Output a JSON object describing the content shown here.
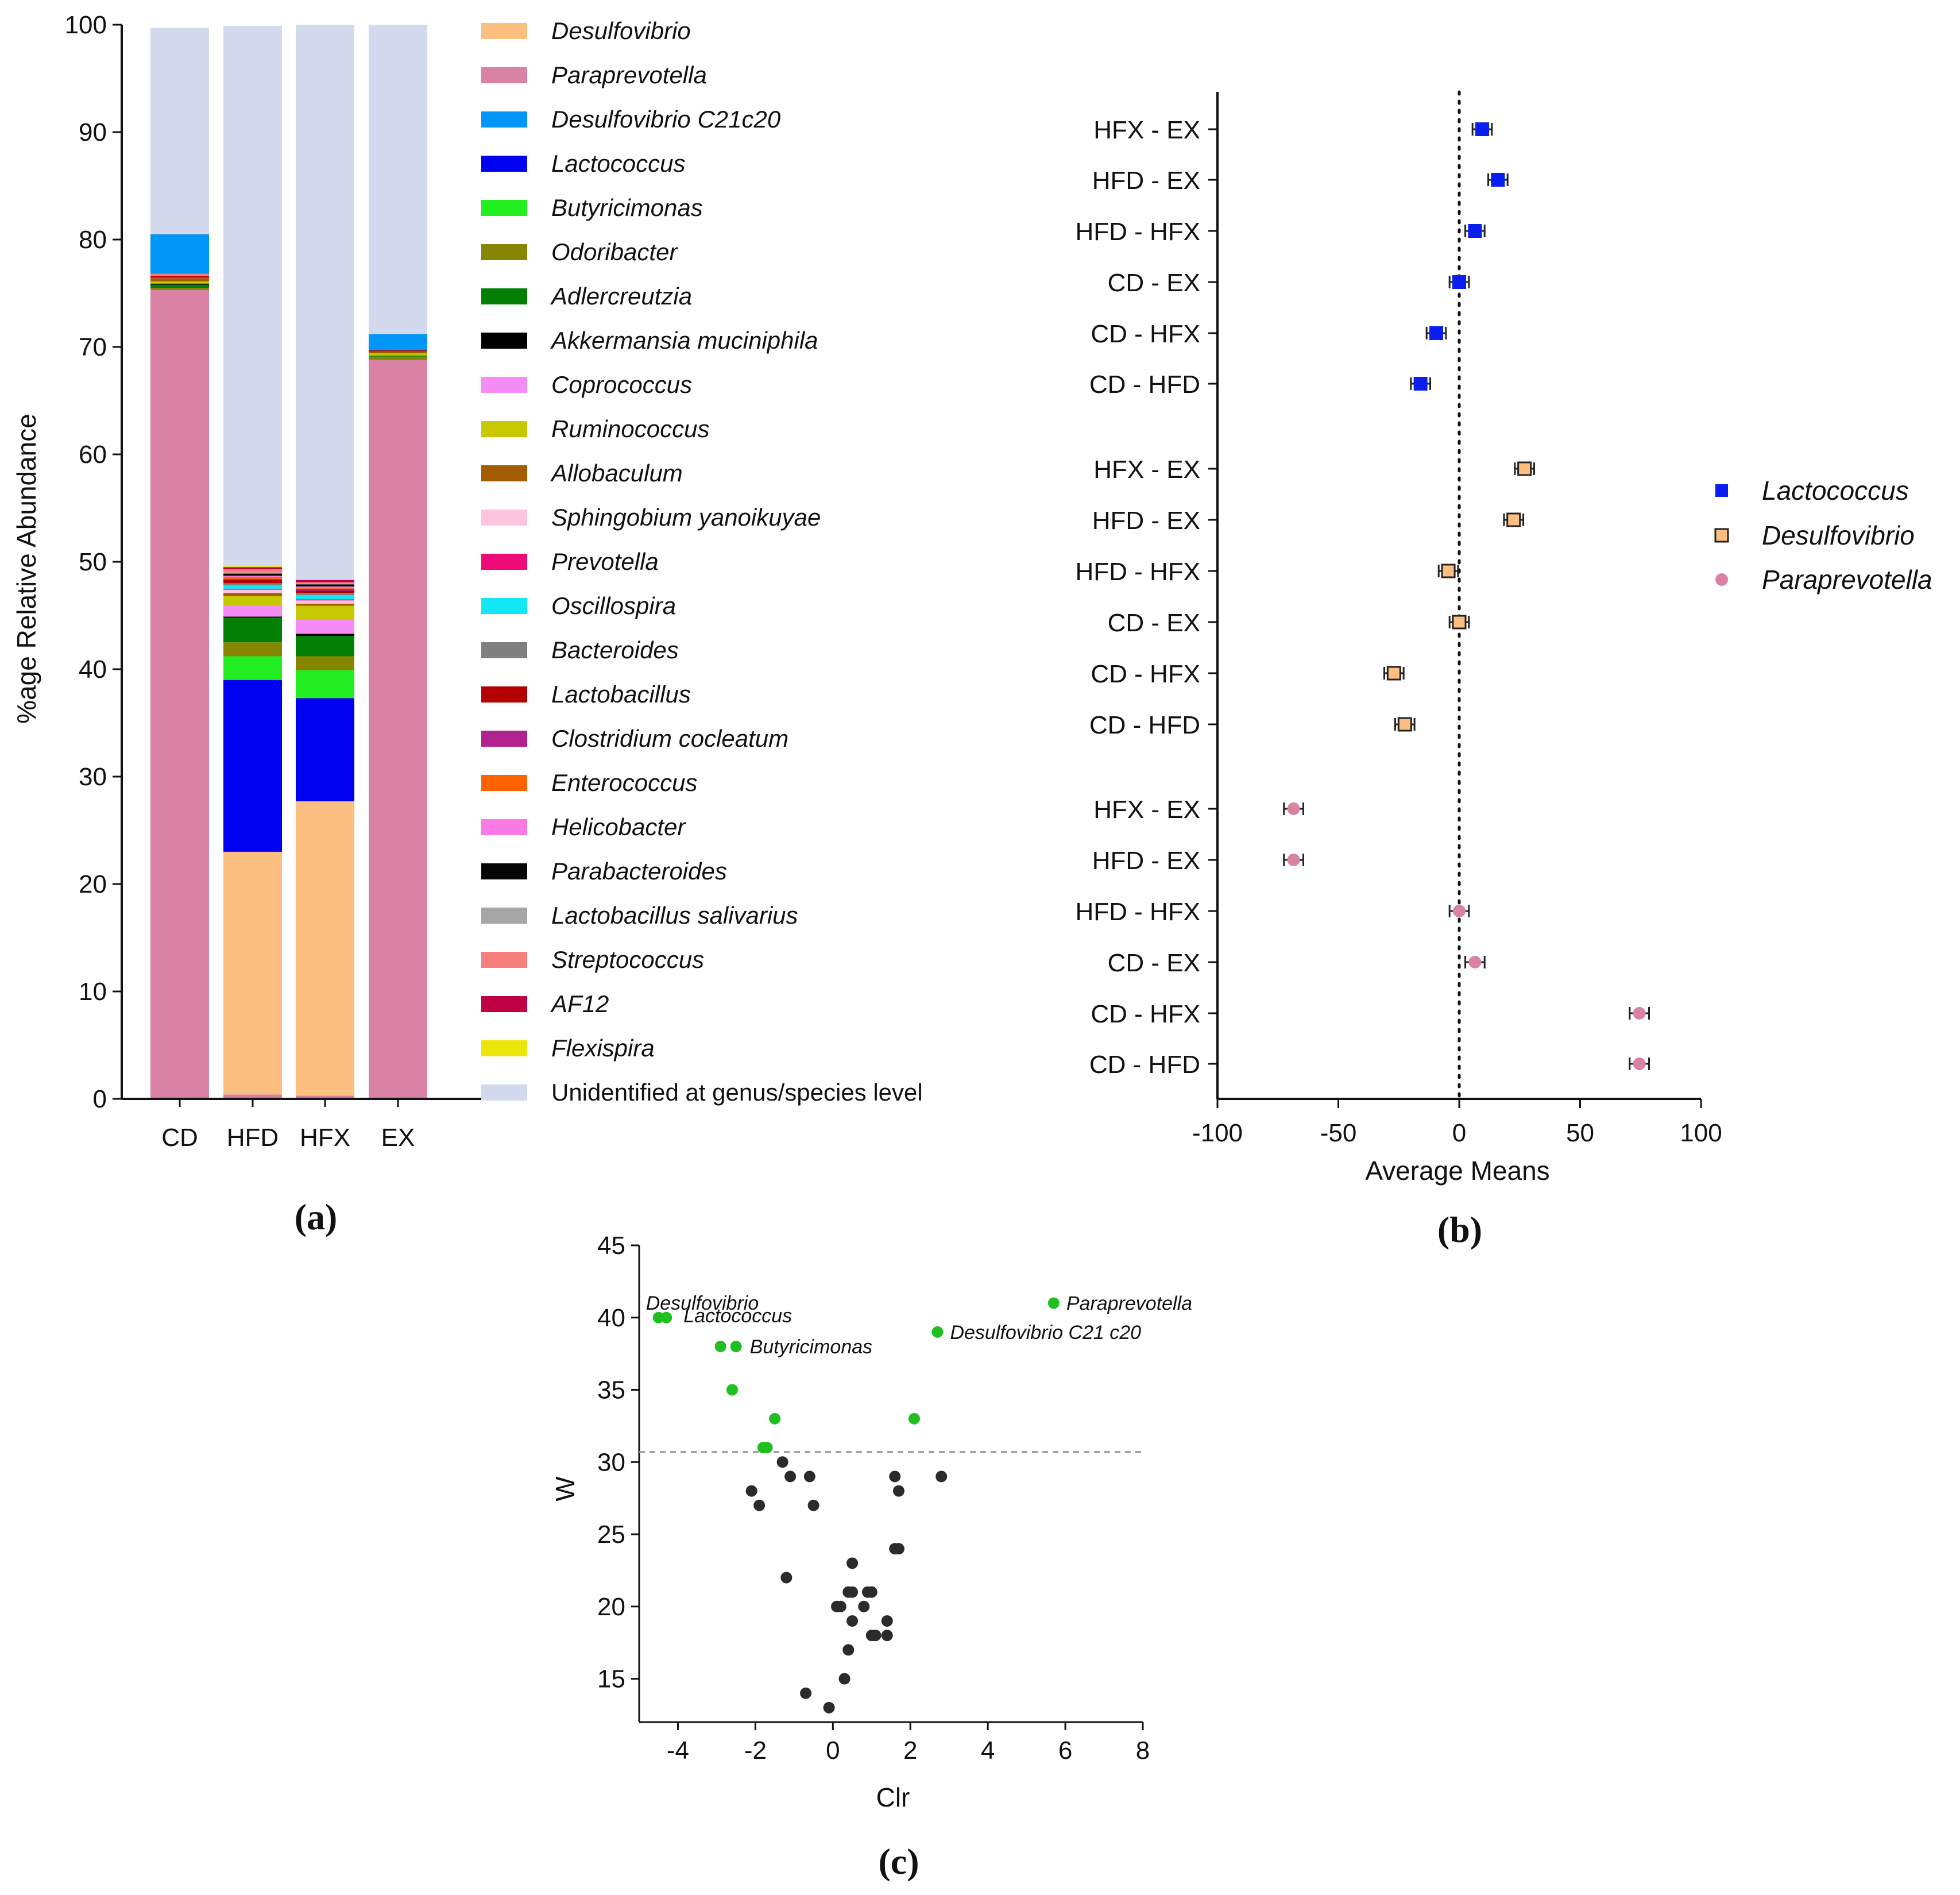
{
  "chart_data": [
    {
      "id": "a",
      "panel_label": "(a)",
      "type": "bar",
      "stacked": true,
      "ylabel": "%age Relative Abundance",
      "xlabel": "",
      "ylim": [
        0,
        100
      ],
      "yticks": [
        0,
        10,
        20,
        30,
        40,
        50,
        60,
        70,
        80,
        90,
        100
      ],
      "categories": [
        "CD",
        "HFD",
        "HFX",
        "EX"
      ],
      "series": [
        {
          "name": "Paraprevotella",
          "color": "#d982a4",
          "values": [
            75.3,
            0.4,
            0.3,
            68.8
          ]
        },
        {
          "name": "Desulfovibrio",
          "color": "#fdbf80",
          "values": [
            0.0,
            22.6,
            27.4,
            0.0
          ]
        },
        {
          "name": "Lactococcus",
          "color": "#0000f0",
          "values": [
            0.0,
            16.0,
            9.6,
            0.0
          ]
        },
        {
          "name": "Butyricimonas",
          "color": "#22ee22",
          "values": [
            0.0,
            2.2,
            2.6,
            0.0
          ]
        },
        {
          "name": "Odoribacter",
          "color": "#868600",
          "values": [
            0.2,
            1.3,
            1.3,
            0.3
          ]
        },
        {
          "name": "Adlercreutzia",
          "color": "#037f03",
          "values": [
            0.3,
            2.3,
            1.9,
            0.1
          ]
        },
        {
          "name": "Akkermansia muciniphila",
          "color": "#000000",
          "values": [
            0.1,
            0.1,
            0.2,
            0.0
          ]
        },
        {
          "name": "Coprococcus",
          "color": "#f58cf5",
          "values": [
            0.0,
            1.0,
            1.3,
            0.0
          ]
        },
        {
          "name": "Ruminococcus",
          "color": "#c8c800",
          "values": [
            0.2,
            0.9,
            1.3,
            0.2
          ]
        },
        {
          "name": "Allobaculum",
          "color": "#a35c00",
          "values": [
            0.3,
            0.3,
            0.2,
            0.2
          ]
        },
        {
          "name": "Sphingobium yanoikuyae",
          "color": "#ffc4de",
          "values": [
            0.0,
            0.3,
            0.3,
            0.0
          ]
        },
        {
          "name": "Prevotella",
          "color": "#ef0a7a",
          "values": [
            0.1,
            0.1,
            0.1,
            0.0
          ]
        },
        {
          "name": "Oscillospira",
          "color": "#11e7f5",
          "values": [
            0.0,
            0.3,
            0.4,
            0.0
          ]
        },
        {
          "name": "Bacteroides",
          "color": "#7f7f7f",
          "values": [
            0.0,
            0.2,
            0.2,
            0.0
          ]
        },
        {
          "name": "Lactobacillus",
          "color": "#b30000",
          "values": [
            0.1,
            0.3,
            0.2,
            0.1
          ]
        },
        {
          "name": "Clostridium cocleatum",
          "color": "#b0228e",
          "values": [
            0.0,
            0.1,
            0.2,
            0.0
          ]
        },
        {
          "name": "Enterococcus",
          "color": "#ff6000",
          "values": [
            0.0,
            0.2,
            0.1,
            0.0
          ]
        },
        {
          "name": "Helicobacter",
          "color": "#fb79e4",
          "values": [
            0.0,
            0.1,
            0.1,
            0.0
          ]
        },
        {
          "name": "Parabacteroides",
          "color": "#050505",
          "values": [
            0.0,
            0.2,
            0.2,
            0.0
          ]
        },
        {
          "name": "Lactobacillus salivarius",
          "color": "#a6a6a6",
          "values": [
            0.0,
            0.1,
            0.1,
            0.0
          ]
        },
        {
          "name": "Streptococcus",
          "color": "#f77f7f",
          "values": [
            0.2,
            0.3,
            0.1,
            0.0
          ]
        },
        {
          "name": "AF12",
          "color": "#bf0045",
          "values": [
            0.0,
            0.2,
            0.2,
            0.0
          ]
        },
        {
          "name": "Flexispira",
          "color": "#ebe60a",
          "values": [
            0.0,
            0.1,
            0.1,
            0.0
          ]
        },
        {
          "name": "Desulfovibrio C21c20",
          "color": "#0096f5",
          "values": [
            3.7,
            0.0,
            0.0,
            1.5
          ]
        },
        {
          "name": "Unidentified at genus/species level",
          "color": "#d3daed",
          "values": [
            19.2,
            50.3,
            51.6,
            28.8
          ]
        }
      ],
      "legend_order": [
        "Desulfovibrio",
        "Paraprevotella",
        "Desulfovibrio C21c20",
        "Lactococcus",
        "Butyricimonas",
        "Odoribacter",
        "Adlercreutzia",
        "Akkermansia muciniphila",
        "Coprococcus",
        "Ruminococcus",
        "Allobaculum",
        "Sphingobium yanoikuyae",
        "Prevotella",
        "Oscillospira",
        "Bacteroides",
        "Lactobacillus",
        "Clostridium cocleatum",
        "Enterococcus",
        "Helicobacter",
        "Parabacteroides",
        "Lactobacillus salivarius",
        "Streptococcus",
        "AF12",
        "Flexispira",
        "Unidentified at genus/species level"
      ],
      "legend_placement": "right"
    },
    {
      "id": "b",
      "panel_label": "(b)",
      "type": "scatter",
      "subtype": "forest",
      "xlabel": "Average Means",
      "xlim": [
        -100,
        100
      ],
      "xticks": [
        -100,
        -50,
        0,
        50,
        100
      ],
      "reference_line": 0,
      "series": [
        {
          "name": "Lactococcus",
          "marker": "square",
          "color": "#0a1ef0",
          "points": [
            {
              "label": "HFX - EX",
              "mean": 9.5,
              "lo": 5.5,
              "hi": 13.5
            },
            {
              "label": "HFD - EX",
              "mean": 16.0,
              "lo": 12.0,
              "hi": 20.0
            },
            {
              "label": "HFD - HFX",
              "mean": 6.5,
              "lo": 2.5,
              "hi": 10.5
            },
            {
              "label": "CD - EX",
              "mean": 0.0,
              "lo": -4.0,
              "hi": 4.0
            },
            {
              "label": "CD - HFX",
              "mean": -9.5,
              "lo": -13.5,
              "hi": -5.5
            },
            {
              "label": "CD - HFD",
              "mean": -16.0,
              "lo": -20.0,
              "hi": -12.0
            }
          ]
        },
        {
          "name": "Desulfovibrio",
          "marker": "square-open",
          "color": "#fdbf80",
          "points": [
            {
              "label": "HFX - EX",
              "mean": 27.0,
              "lo": 23.0,
              "hi": 31.0
            },
            {
              "label": "HFD - EX",
              "mean": 22.5,
              "lo": 18.5,
              "hi": 26.5
            },
            {
              "label": "HFD - HFX",
              "mean": -4.5,
              "lo": -8.5,
              "hi": -0.5
            },
            {
              "label": "CD - EX",
              "mean": 0.0,
              "lo": -4.0,
              "hi": 4.0
            },
            {
              "label": "CD - HFX",
              "mean": -27.0,
              "lo": -31.0,
              "hi": -23.0
            },
            {
              "label": "CD - HFD",
              "mean": -22.5,
              "lo": -26.5,
              "hi": -18.5
            }
          ]
        },
        {
          "name": "Paraprevotella",
          "marker": "circle",
          "color": "#d982a4",
          "points": [
            {
              "label": "HFX - EX",
              "mean": -68.5,
              "lo": -72.5,
              "hi": -64.5
            },
            {
              "label": "HFD - EX",
              "mean": -68.5,
              "lo": -72.5,
              "hi": -64.5
            },
            {
              "label": "HFD - HFX",
              "mean": 0.0,
              "lo": -4.0,
              "hi": 4.0
            },
            {
              "label": "CD - EX",
              "mean": 6.5,
              "lo": 2.5,
              "hi": 10.5
            },
            {
              "label": "CD - HFX",
              "mean": 74.5,
              "lo": 70.5,
              "hi": 78.5
            },
            {
              "label": "CD - HFD",
              "mean": 74.5,
              "lo": 70.5,
              "hi": 78.5
            }
          ]
        }
      ],
      "legend_placement": "right"
    },
    {
      "id": "c",
      "panel_label": "(c)",
      "type": "scatter",
      "xlabel": "Clr",
      "ylabel": "W",
      "xlim": [
        -5,
        8
      ],
      "ylim": [
        12,
        45
      ],
      "xticks": [
        -4,
        -2,
        0,
        2,
        4,
        6,
        8
      ],
      "yticks": [
        15,
        20,
        25,
        30,
        35,
        40,
        45
      ],
      "threshold_W": 30.7,
      "series": [
        {
          "name": "significant",
          "color": "#1fbf1f",
          "points": [
            [
              -4.5,
              40
            ],
            [
              -4.3,
              40
            ],
            [
              -2.9,
              38
            ],
            [
              -2.5,
              38
            ],
            [
              -2.6,
              35
            ],
            [
              -1.5,
              33
            ],
            [
              -1.8,
              31
            ],
            [
              -1.7,
              31
            ],
            [
              2.1,
              33
            ],
            [
              2.7,
              39
            ],
            [
              5.7,
              41
            ]
          ]
        },
        {
          "name": "non-significant",
          "color": "#2b2b2b",
          "points": [
            [
              -1.3,
              30
            ],
            [
              -2.1,
              28
            ],
            [
              -1.1,
              29
            ],
            [
              -0.6,
              29
            ],
            [
              -1.9,
              27
            ],
            [
              -0.5,
              27
            ],
            [
              1.6,
              29
            ],
            [
              1.7,
              28
            ],
            [
              2.8,
              29
            ],
            [
              1.6,
              24
            ],
            [
              1.7,
              24
            ],
            [
              0.5,
              23
            ],
            [
              -1.2,
              22
            ],
            [
              0.4,
              21
            ],
            [
              0.5,
              21
            ],
            [
              0.9,
              21
            ],
            [
              1.0,
              21
            ],
            [
              0.1,
              20
            ],
            [
              0.2,
              20
            ],
            [
              0.8,
              20
            ],
            [
              0.5,
              19
            ],
            [
              1.4,
              19
            ],
            [
              1.0,
              18
            ],
            [
              1.1,
              18
            ],
            [
              1.4,
              18
            ],
            [
              0.4,
              17
            ],
            [
              0.3,
              15
            ],
            [
              -0.7,
              14
            ],
            [
              -0.1,
              13
            ]
          ]
        }
      ],
      "annotations": [
        {
          "text": "Desulfovibrio",
          "x": -4.5,
          "y": 40
        },
        {
          "text": "Lactococcus",
          "x": -4.3,
          "y": 40
        },
        {
          "text": "Butyricimonas",
          "x": -2.5,
          "y": 38
        },
        {
          "text": "Desulfovibrio C21 c20",
          "x": 2.7,
          "y": 39
        },
        {
          "text": "Paraprevotella",
          "x": 5.7,
          "y": 41
        }
      ]
    }
  ]
}
